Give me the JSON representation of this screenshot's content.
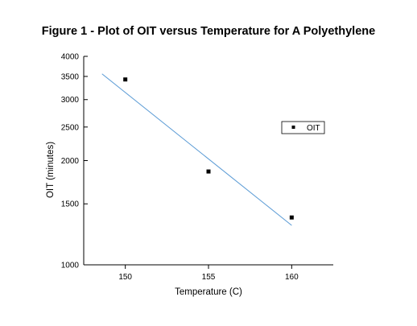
{
  "chart_data": {
    "type": "scatter",
    "title": "Figure 1 - Plot of OIT versus Temperature for A Polyethylene",
    "xlabel": "Temperature (C)",
    "ylabel": "OIT (minutes)",
    "xlim": [
      147.5,
      162.5
    ],
    "ylim": [
      1000,
      4000
    ],
    "y_scale": "log",
    "x_ticks": [
      150,
      155,
      160
    ],
    "x_tick_labels": [
      "150",
      "155",
      "160"
    ],
    "y_ticks": [
      1000,
      1500,
      2000,
      2500,
      3000,
      3500,
      4000
    ],
    "y_tick_labels": [
      "1000",
      "1500",
      "2000",
      "2500",
      "3000",
      "3500",
      "4000"
    ],
    "series": [
      {
        "name": "OIT",
        "kind": "points",
        "marker": "square",
        "color": "#000000",
        "x": [
          150,
          155,
          160
        ],
        "y": [
          3430,
          1860,
          1370
        ]
      }
    ],
    "fit_line": {
      "color": "#5b9bd5",
      "x": [
        148.6,
        160
      ],
      "y": [
        3560,
        1300
      ]
    },
    "legend_position": "right",
    "grid": false
  }
}
